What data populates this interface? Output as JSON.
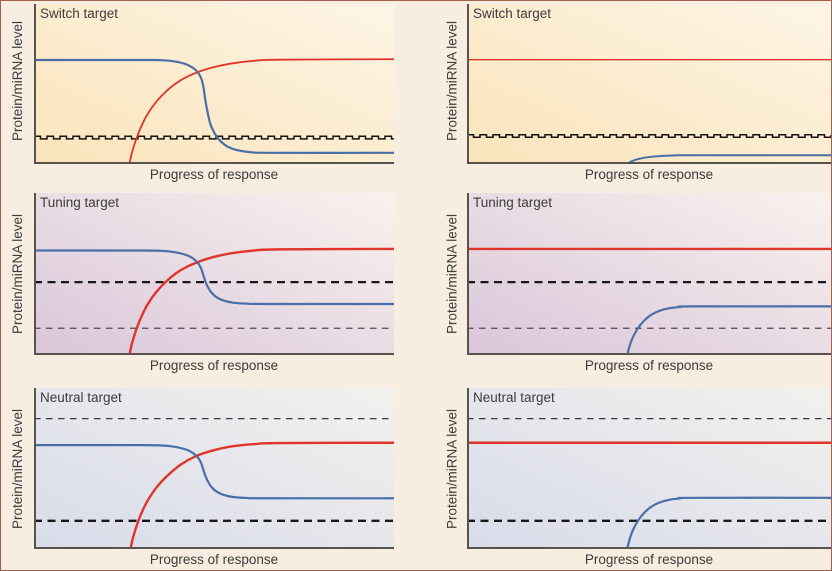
{
  "figure": {
    "ylabel": "Protein/miRNA level",
    "xlabel": "Progress of response"
  },
  "colors": {
    "mirna_red": "#e0352b",
    "protein_blue": "#4a6fa8",
    "dashed_black": "#141414",
    "dashed_bold": "#18181b",
    "dashed_gray": "#4e4a52",
    "axis": "#57544e",
    "canvas_bg": "#f7ede1",
    "title_text": "#3c3c3c"
  },
  "chart_data": [
    {
      "type": "line",
      "title": "Switch target",
      "ylabel": "Protein/miRNA level",
      "xlabel": "Progress of response",
      "x_range": [
        0,
        1
      ],
      "y_range": [
        0,
        1
      ],
      "grid": false,
      "ticks": false,
      "background": [
        "#fdf5e6",
        "#fae4ba"
      ],
      "lines": [
        {
          "name": "threshold-dashed-stepped",
          "style": "stepped-dashed",
          "level": 0.165,
          "color": "#141414",
          "width": 1.5
        },
        {
          "name": "miRNA",
          "color": "#e0352b",
          "width": 1.8,
          "points": [
            [
              0.265,
              0
            ],
            [
              0.272,
              0.07
            ],
            [
              0.283,
              0.15
            ],
            [
              0.297,
              0.23
            ],
            [
              0.315,
              0.31
            ],
            [
              0.34,
              0.39
            ],
            [
              0.37,
              0.46
            ],
            [
              0.405,
              0.52
            ],
            [
              0.445,
              0.565
            ],
            [
              0.49,
              0.6
            ],
            [
              0.545,
              0.627
            ],
            [
              0.61,
              0.645
            ],
            [
              0.68,
              0.652
            ],
            [
              1,
              0.655
            ]
          ]
        },
        {
          "name": "target-protein",
          "color": "#4a6fa8",
          "width": 2.2,
          "points": [
            [
              0,
              0.65
            ],
            [
              0.3,
              0.65
            ],
            [
              0.36,
              0.648
            ],
            [
              0.4,
              0.637
            ],
            [
              0.43,
              0.616
            ],
            [
              0.45,
              0.586
            ],
            [
              0.462,
              0.548
            ],
            [
              0.469,
              0.5
            ],
            [
              0.473,
              0.445
            ],
            [
              0.477,
              0.385
            ],
            [
              0.483,
              0.315
            ],
            [
              0.49,
              0.25
            ],
            [
              0.502,
              0.19
            ],
            [
              0.517,
              0.145
            ],
            [
              0.537,
              0.11
            ],
            [
              0.562,
              0.088
            ],
            [
              0.6,
              0.074
            ],
            [
              0.66,
              0.07
            ],
            [
              1,
              0.07
            ]
          ]
        }
      ]
    },
    {
      "type": "line",
      "title": "Switch target",
      "ylabel": "Protein/miRNA level",
      "xlabel": "Progress of response",
      "x_range": [
        0,
        1
      ],
      "y_range": [
        0,
        1
      ],
      "grid": false,
      "ticks": false,
      "background": [
        "#fdf5e6",
        "#fae4ba"
      ],
      "lines": [
        {
          "name": "threshold-dashed-stepped",
          "style": "stepped-dashed",
          "level": 0.175,
          "color": "#141414",
          "width": 1.5
        },
        {
          "name": "miRNA",
          "color": "#e0352b",
          "width": 1.4,
          "points": [
            [
              0,
              0.652
            ],
            [
              1,
              0.652
            ]
          ]
        },
        {
          "name": "target-protein",
          "color": "#4a6fa8",
          "width": 2.0,
          "points": [
            [
              0.44,
              0
            ],
            [
              0.449,
              0.013
            ],
            [
              0.46,
              0.024
            ],
            [
              0.474,
              0.033
            ],
            [
              0.492,
              0.041
            ],
            [
              0.514,
              0.047
            ],
            [
              0.54,
              0.051
            ],
            [
              0.572,
              0.054
            ],
            [
              0.61,
              0.055
            ],
            [
              1,
              0.055
            ]
          ]
        }
      ]
    },
    {
      "type": "line",
      "title": "Tuning target",
      "ylabel": "Protein/miRNA level",
      "xlabel": "Progress of response",
      "x_range": [
        0,
        1
      ],
      "y_range": [
        0,
        1
      ],
      "grid": false,
      "ticks": false,
      "background": [
        "#f9f2ee",
        "#d9c6d9"
      ],
      "lines": [
        {
          "name": "threshold-dashed-upper",
          "style": "dashed-bold",
          "level": 0.45,
          "color": "#18181b",
          "width": 2.3
        },
        {
          "name": "threshold-dashed-lower",
          "style": "dashed-thin",
          "level": 0.165,
          "color": "#4e4a52",
          "width": 1.3
        },
        {
          "name": "miRNA",
          "color": "#e0352b",
          "width": 2.4,
          "points": [
            [
              0.265,
              0
            ],
            [
              0.272,
              0.07
            ],
            [
              0.283,
              0.15
            ],
            [
              0.297,
              0.23
            ],
            [
              0.315,
              0.31
            ],
            [
              0.34,
              0.39
            ],
            [
              0.37,
              0.46
            ],
            [
              0.405,
              0.52
            ],
            [
              0.445,
              0.565
            ],
            [
              0.49,
              0.6
            ],
            [
              0.545,
              0.627
            ],
            [
              0.61,
              0.645
            ],
            [
              0.68,
              0.652
            ],
            [
              1,
              0.655
            ]
          ]
        },
        {
          "name": "target-protein",
          "color": "#4a6fa8",
          "width": 2.2,
          "points": [
            [
              0,
              0.645
            ],
            [
              0.3,
              0.645
            ],
            [
              0.36,
              0.642
            ],
            [
              0.4,
              0.631
            ],
            [
              0.43,
              0.611
            ],
            [
              0.45,
              0.581
            ],
            [
              0.462,
              0.545
            ],
            [
              0.469,
              0.503
            ],
            [
              0.475,
              0.46
            ],
            [
              0.483,
              0.42
            ],
            [
              0.493,
              0.385
            ],
            [
              0.507,
              0.357
            ],
            [
              0.527,
              0.336
            ],
            [
              0.553,
              0.323
            ],
            [
              0.59,
              0.317
            ],
            [
              0.65,
              0.315
            ],
            [
              1,
              0.315
            ]
          ]
        }
      ]
    },
    {
      "type": "line",
      "title": "Tuning target",
      "ylabel": "Protein/miRNA level",
      "xlabel": "Progress of response",
      "x_range": [
        0,
        1
      ],
      "y_range": [
        0,
        1
      ],
      "grid": false,
      "ticks": false,
      "background": [
        "#f9f2ee",
        "#d9c6d9"
      ],
      "lines": [
        {
          "name": "threshold-dashed-upper",
          "style": "dashed-bold",
          "level": 0.45,
          "color": "#18181b",
          "width": 2.3
        },
        {
          "name": "threshold-dashed-lower",
          "style": "dashed-thin",
          "level": 0.165,
          "color": "#4e4a52",
          "width": 1.3
        },
        {
          "name": "miRNA",
          "color": "#e0352b",
          "width": 2.4,
          "points": [
            [
              0,
              0.655
            ],
            [
              1,
              0.655
            ]
          ]
        },
        {
          "name": "target-protein",
          "color": "#4a6fa8",
          "width": 2.2,
          "points": [
            [
              0.44,
              0
            ],
            [
              0.448,
              0.065
            ],
            [
              0.458,
              0.12
            ],
            [
              0.471,
              0.17
            ],
            [
              0.487,
              0.213
            ],
            [
              0.506,
              0.248
            ],
            [
              0.528,
              0.272
            ],
            [
              0.554,
              0.288
            ],
            [
              0.585,
              0.296
            ],
            [
              0.62,
              0.3
            ],
            [
              1,
              0.3
            ]
          ]
        }
      ]
    },
    {
      "type": "line",
      "title": "Neutral target",
      "ylabel": "Protein/miRNA level",
      "xlabel": "Progress of response",
      "x_range": [
        0,
        1
      ],
      "y_range": [
        0,
        1
      ],
      "grid": false,
      "ticks": false,
      "background": [
        "#f3f1ed",
        "#d8dcea"
      ],
      "lines": [
        {
          "name": "threshold-dashed-upper",
          "style": "dashed-thin",
          "level": 0.81,
          "color": "#3a373e",
          "width": 1.3
        },
        {
          "name": "threshold-dashed-lower",
          "style": "dashed-bold",
          "level": 0.175,
          "color": "#18181b",
          "width": 2.3
        },
        {
          "name": "miRNA",
          "color": "#e0352b",
          "width": 2.4,
          "points": [
            [
              0.268,
              0
            ],
            [
              0.275,
              0.07
            ],
            [
              0.286,
              0.15
            ],
            [
              0.3,
              0.23
            ],
            [
              0.318,
              0.31
            ],
            [
              0.343,
              0.39
            ],
            [
              0.373,
              0.46
            ],
            [
              0.408,
              0.525
            ],
            [
              0.448,
              0.575
            ],
            [
              0.493,
              0.61
            ],
            [
              0.548,
              0.637
            ],
            [
              0.613,
              0.652
            ],
            [
              0.68,
              0.658
            ],
            [
              1,
              0.66
            ]
          ]
        },
        {
          "name": "target-protein",
          "color": "#4a6fa8",
          "width": 2.2,
          "points": [
            [
              0,
              0.645
            ],
            [
              0.3,
              0.645
            ],
            [
              0.36,
              0.642
            ],
            [
              0.4,
              0.631
            ],
            [
              0.43,
              0.611
            ],
            [
              0.45,
              0.581
            ],
            [
              0.462,
              0.545
            ],
            [
              0.469,
              0.503
            ],
            [
              0.475,
              0.46
            ],
            [
              0.483,
              0.42
            ],
            [
              0.493,
              0.385
            ],
            [
              0.507,
              0.357
            ],
            [
              0.527,
              0.336
            ],
            [
              0.553,
              0.323
            ],
            [
              0.59,
              0.317
            ],
            [
              0.65,
              0.315
            ],
            [
              1,
              0.315
            ]
          ]
        }
      ]
    },
    {
      "type": "line",
      "title": "Neutral target",
      "ylabel": "Protein/miRNA level",
      "xlabel": "Progress of response",
      "x_range": [
        0,
        1
      ],
      "y_range": [
        0,
        1
      ],
      "grid": false,
      "ticks": false,
      "background": [
        "#f3f1ed",
        "#d8dcea"
      ],
      "lines": [
        {
          "name": "threshold-dashed-upper",
          "style": "dashed-thin",
          "level": 0.81,
          "color": "#3a373e",
          "width": 1.3
        },
        {
          "name": "threshold-dashed-lower",
          "style": "dashed-bold",
          "level": 0.175,
          "color": "#18181b",
          "width": 2.3
        },
        {
          "name": "miRNA",
          "color": "#e0352b",
          "width": 2.4,
          "points": [
            [
              0,
              0.66
            ],
            [
              1,
              0.66
            ]
          ]
        },
        {
          "name": "target-protein",
          "color": "#4a6fa8",
          "width": 2.2,
          "points": [
            [
              0.44,
              0
            ],
            [
              0.448,
              0.07
            ],
            [
              0.458,
              0.128
            ],
            [
              0.471,
              0.18
            ],
            [
              0.487,
              0.225
            ],
            [
              0.506,
              0.262
            ],
            [
              0.528,
              0.288
            ],
            [
              0.554,
              0.305
            ],
            [
              0.585,
              0.314
            ],
            [
              0.62,
              0.318
            ],
            [
              1,
              0.318
            ]
          ]
        }
      ]
    }
  ]
}
